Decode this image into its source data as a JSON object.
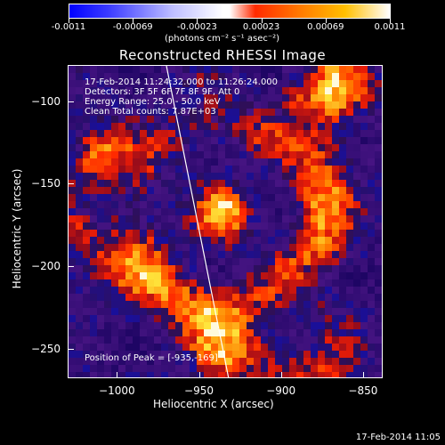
{
  "colorbar": {
    "ticks": [
      "-0.0011",
      "-0.00069",
      "-0.00023",
      "0.00023",
      "0.00069",
      "0.0011"
    ],
    "units": "(photons cm⁻² s⁻¹ asec⁻²)"
  },
  "title": "Reconstructed RHESSI Image",
  "info": {
    "time": "17-Feb-2014 11:24:32.000 to 11:26:24.000",
    "detectors": "Detectors: 3F 5F 6F 7F 8F 9F, Att 0",
    "energy": "Energy Range: 25.0 - 50.0 keV",
    "clean": "Clean     Total counts: 7.87E+03",
    "peak": "Position of Peak = [-935,-169]"
  },
  "footer": "17-Feb-2014 11:05",
  "chart_data": {
    "type": "heatmap",
    "title": "Reconstructed RHESSI Image",
    "xlabel": "Heliocentric X (arcsec)",
    "ylabel": "Heliocentric Y (arcsec)",
    "xlim": [
      -1030,
      -838
    ],
    "ylim": [
      -268,
      -78
    ],
    "x_ticks": [
      -1000,
      -950,
      -900,
      -850
    ],
    "y_ticks": [
      -100,
      -150,
      -200,
      -250
    ],
    "colorbar_range": [
      -0.0011,
      0.0011
    ],
    "peak_position": [
      -935,
      -169
    ],
    "bright_sources": [
      {
        "x": -935,
        "y": -169,
        "intensity": 0.0011
      },
      {
        "x": -1012,
        "y": -132,
        "intensity": 0.0009
      },
      {
        "x": -935,
        "y": -255,
        "intensity": 0.0006
      }
    ],
    "limb_line": [
      [
        -970,
        -78
      ],
      [
        -932,
        -268
      ]
    ],
    "colors": {
      "negative": "#2a0a6e",
      "positive": "#ff3000",
      "peak": "#ffffff"
    }
  }
}
